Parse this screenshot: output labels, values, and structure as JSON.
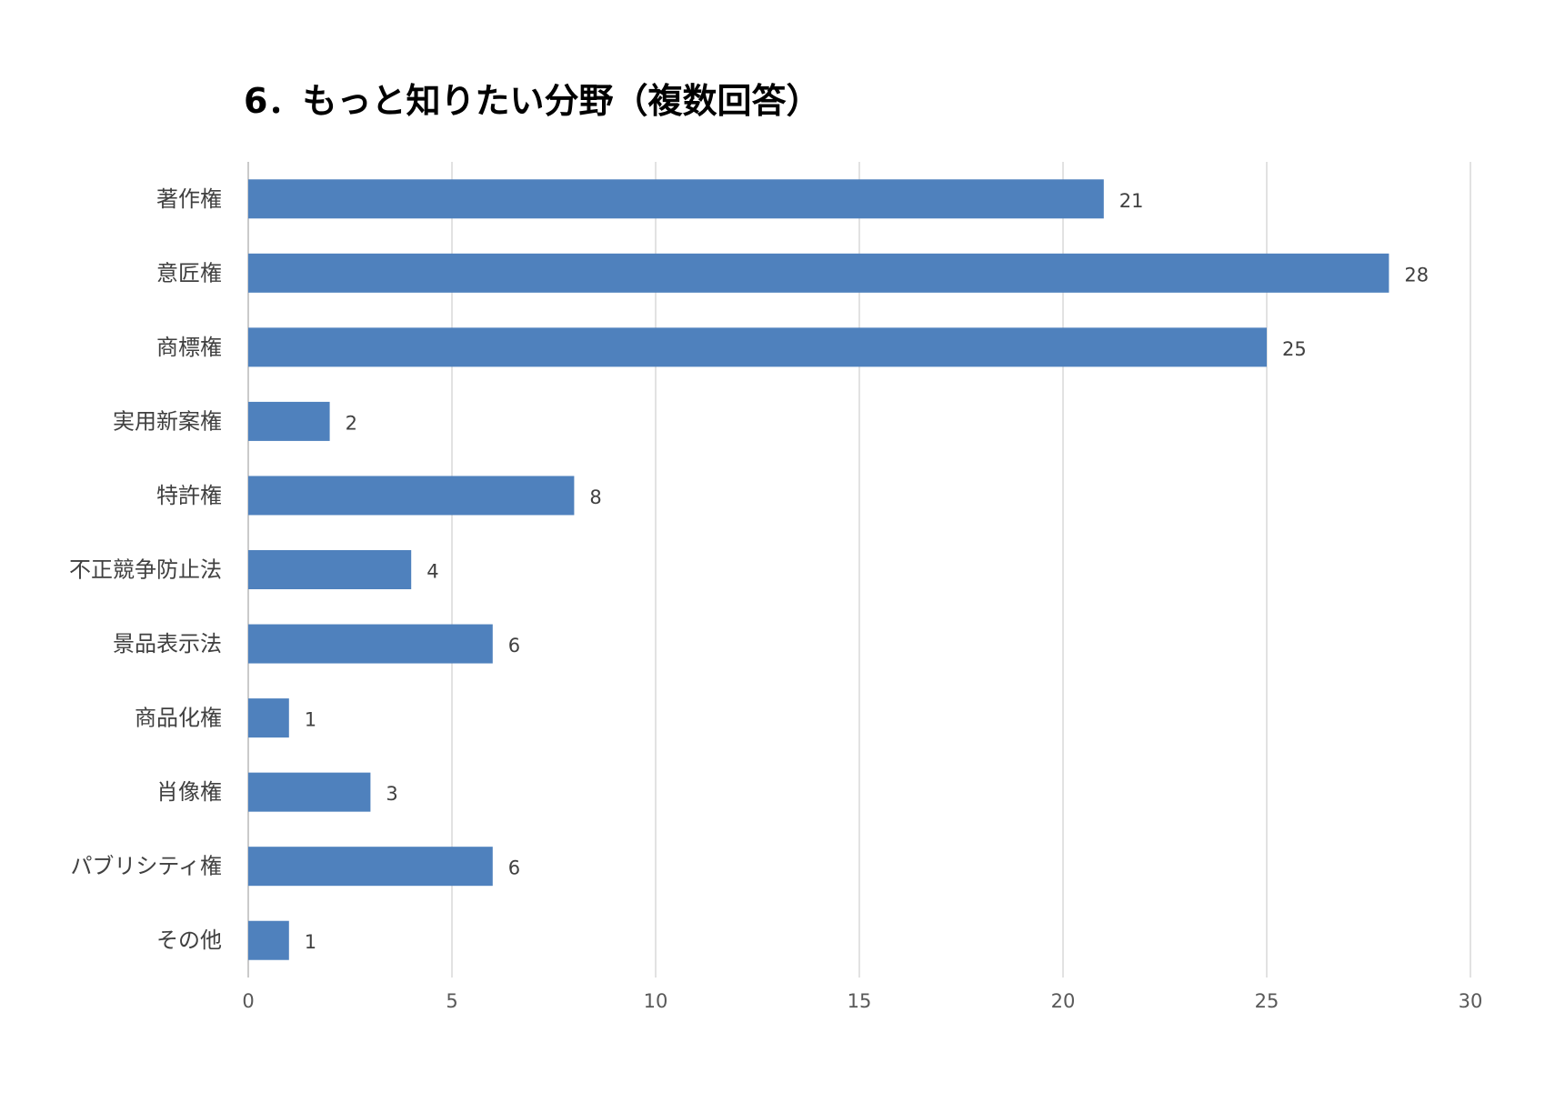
{
  "chart_data": {
    "type": "bar",
    "orientation": "horizontal",
    "title": "6．もっと知りたい分野（複数回答）",
    "categories": [
      "著作権",
      "意匠権",
      "商標権",
      "実用新案権",
      "特許権",
      "不正競争防止法",
      "景品表示法",
      "商品化権",
      "肖像権",
      "パブリシティ権",
      "その他"
    ],
    "values": [
      21,
      28,
      25,
      2,
      8,
      4,
      6,
      1,
      3,
      6,
      1
    ],
    "xlim": [
      0,
      30
    ],
    "xticks": [
      0,
      5,
      10,
      15,
      20,
      25,
      30
    ],
    "grid": true,
    "data_labels": true,
    "bar_color": "#4f81bd",
    "gridline_color": "#d9d9d9"
  }
}
